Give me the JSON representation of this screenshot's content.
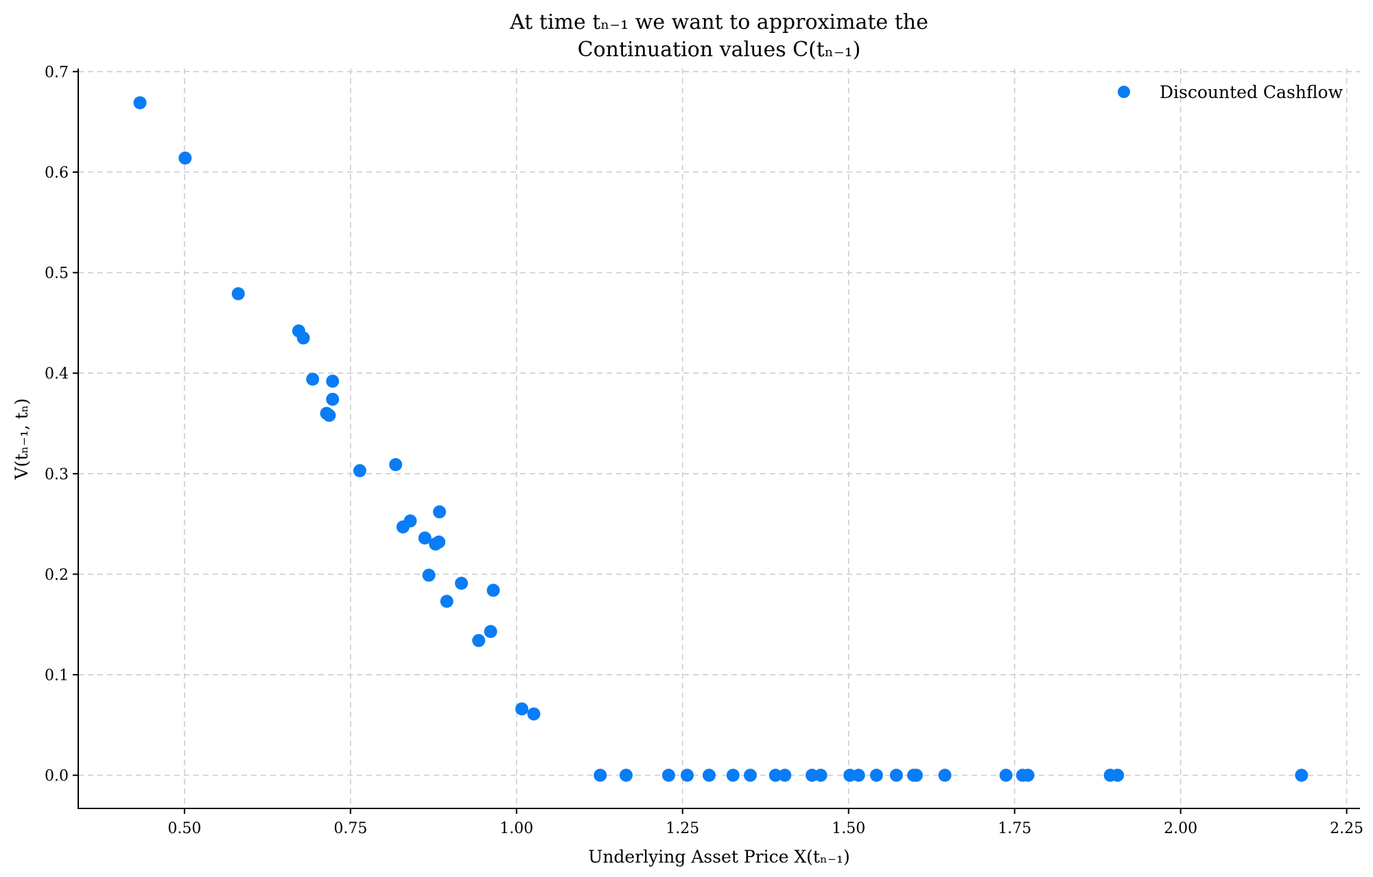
{
  "chart_data": {
    "type": "scatter",
    "title": [
      "At time tₙ₋₁ we want to approximate the",
      "Continuation values C(tₙ₋₁)"
    ],
    "xlabel": "Underlying Asset Price X(tₙ₋₁)",
    "ylabel": "V(tₙ₋₁, tₙ)",
    "xlim": [
      0.34,
      2.27
    ],
    "ylim": [
      -0.033,
      0.703
    ],
    "xticks": [
      0.5,
      0.75,
      1.0,
      1.25,
      1.5,
      1.75,
      2.0,
      2.25
    ],
    "yticks": [
      0.0,
      0.1,
      0.2,
      0.3,
      0.4,
      0.5,
      0.6,
      0.7
    ],
    "xtick_labels": [
      "0.50",
      "0.75",
      "1.00",
      "1.25",
      "1.50",
      "1.75",
      "2.00",
      "2.25"
    ],
    "ytick_labels": [
      "0.0",
      "0.1",
      "0.2",
      "0.3",
      "0.4",
      "0.5",
      "0.6",
      "0.7"
    ],
    "grid": true,
    "legend_position": "top-right",
    "color": "#0a7cf5",
    "series": [
      {
        "name": "Discounted Cashflow",
        "points": [
          [
            0.433,
            0.669
          ],
          [
            0.501,
            0.614
          ],
          [
            0.581,
            0.479
          ],
          [
            0.672,
            0.442
          ],
          [
            0.679,
            0.435
          ],
          [
            0.693,
            0.394
          ],
          [
            0.723,
            0.392
          ],
          [
            0.714,
            0.36
          ],
          [
            0.718,
            0.358
          ],
          [
            0.723,
            0.374
          ],
          [
            0.764,
            0.303
          ],
          [
            0.818,
            0.309
          ],
          [
            0.829,
            0.247
          ],
          [
            0.84,
            0.253
          ],
          [
            0.884,
            0.262
          ],
          [
            0.862,
            0.236
          ],
          [
            0.878,
            0.23
          ],
          [
            0.883,
            0.232
          ],
          [
            0.868,
            0.199
          ],
          [
            0.917,
            0.191
          ],
          [
            0.965,
            0.184
          ],
          [
            0.895,
            0.173
          ],
          [
            0.961,
            0.143
          ],
          [
            0.943,
            0.134
          ],
          [
            1.008,
            0.066
          ],
          [
            1.026,
            0.061
          ],
          [
            1.126,
            0.0
          ],
          [
            1.165,
            0.0
          ],
          [
            1.229,
            0.0
          ],
          [
            1.257,
            0.0
          ],
          [
            1.29,
            0.0
          ],
          [
            1.326,
            0.0
          ],
          [
            1.352,
            0.0
          ],
          [
            1.39,
            0.0
          ],
          [
            1.404,
            0.0
          ],
          [
            1.445,
            0.0
          ],
          [
            1.458,
            0.0
          ],
          [
            1.502,
            0.0
          ],
          [
            1.515,
            0.0
          ],
          [
            1.542,
            0.0
          ],
          [
            1.572,
            0.0
          ],
          [
            1.598,
            0.0
          ],
          [
            1.602,
            0.0
          ],
          [
            1.645,
            0.0
          ],
          [
            1.737,
            0.0
          ],
          [
            1.762,
            0.0
          ],
          [
            1.77,
            0.0
          ],
          [
            1.894,
            0.0
          ],
          [
            1.905,
            0.0
          ],
          [
            2.182,
            0.0
          ]
        ]
      }
    ]
  }
}
